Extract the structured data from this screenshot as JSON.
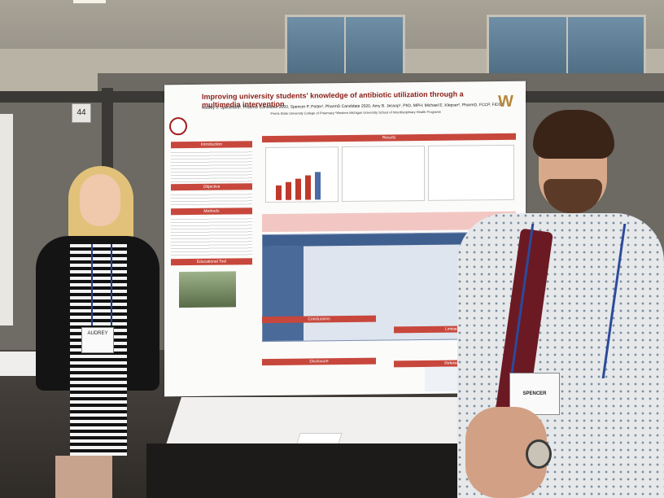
{
  "scene": {
    "description_free": true
  },
  "booth": {
    "number": "44"
  },
  "poster": {
    "title": "Improving university students' knowledge of antibiotic utilization through a multimedia intervention",
    "authors": "Audrey J. Speckhard¹, PharmD Candidate 2020, Spencer P. Potter¹, PharmD Candidate 2020, Amy B. Jessop¹, PhD, MPH; Michael E. Klepser², PharmD, FCCP, FIDSA",
    "affiliation": "¹Ferris State University College of Pharmacy ²Western Michigan University School of Interdisciplinary Health Programs",
    "logo_letter": "W",
    "sections_left": [
      "Introduction",
      "Objective",
      "Methods",
      "Educational Tool"
    ],
    "sections_right": [
      "Results",
      "Conclusions",
      "Limitations",
      "Disclosure",
      "References"
    ]
  },
  "badges": {
    "left_name": "AUDREY",
    "right_name": "SPENCER"
  },
  "colors": {
    "poster_accent": "#c7473c",
    "table_header": "#3f5f8f",
    "logo_gold": "#b5873a"
  }
}
